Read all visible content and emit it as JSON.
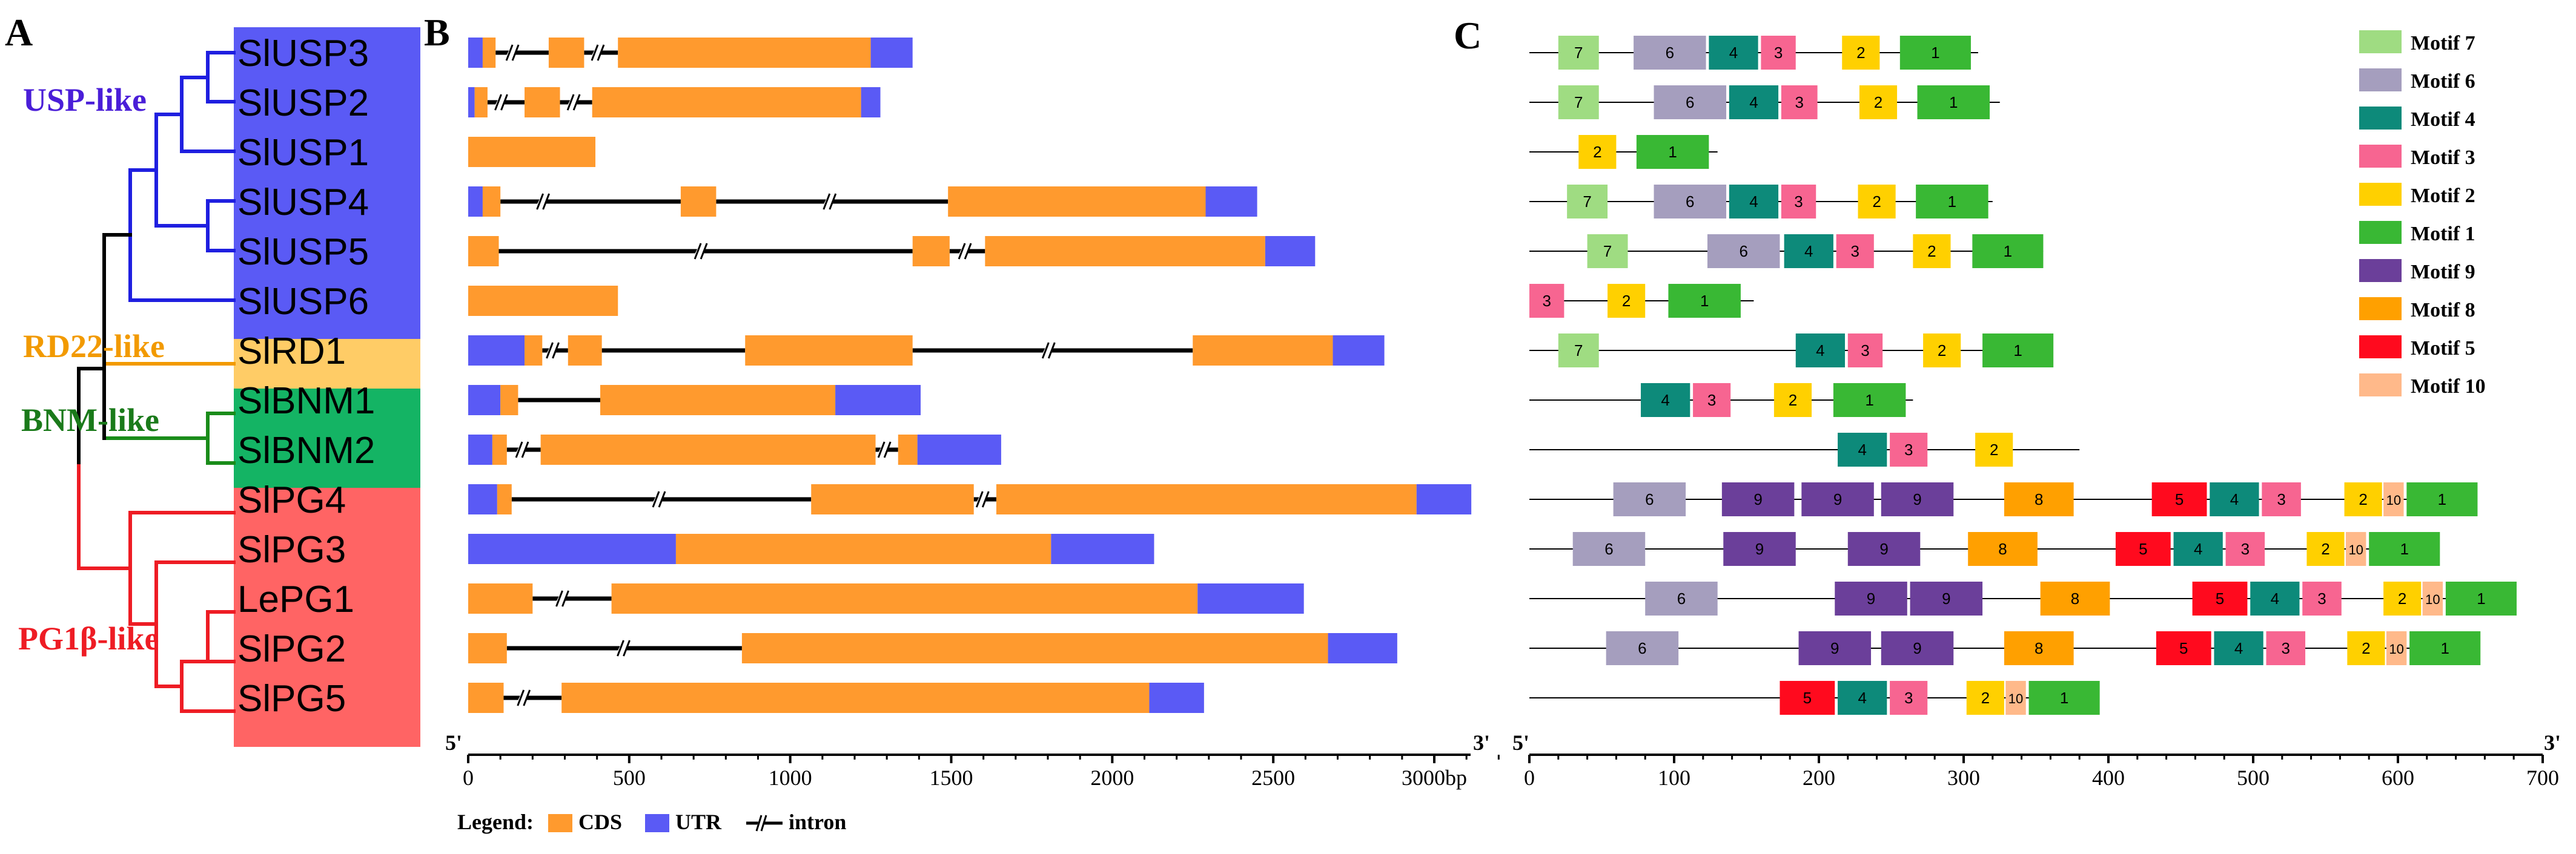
{
  "panels": {
    "a": "A",
    "b": "B",
    "c": "C"
  },
  "colors": {
    "usp": "#5a5af5",
    "rd22": "#ffcc66",
    "bnm": "#14b464",
    "pg": "#ff6464",
    "cds": "#ff9a2e",
    "utr": "#5a5af5",
    "clade_usp_text": "#4a1ed8",
    "clade_rd22_text": "#f29a00",
    "clade_bnm_text": "#1a7a1a",
    "clade_pg_text": "#ee1c24"
  },
  "clades": [
    {
      "id": "usp",
      "label": "USP-like"
    },
    {
      "id": "rd22",
      "label": "RD22-like"
    },
    {
      "id": "bnm",
      "label": "BNM-like"
    },
    {
      "id": "pg",
      "label": "PG1β-like"
    }
  ],
  "genes": [
    {
      "name": "SlUSP3",
      "clade": "usp",
      "length": 1380,
      "features": [
        {
          "t": "utr",
          "s": 0,
          "e": 45
        },
        {
          "t": "cds",
          "s": 45,
          "e": 85
        },
        {
          "t": "intron",
          "s": 85,
          "e": 250,
          "brk": 145
        },
        {
          "t": "cds",
          "s": 250,
          "e": 360
        },
        {
          "t": "intron",
          "s": 360,
          "e": 465,
          "brk": 410
        },
        {
          "t": "cds",
          "s": 465,
          "e": 1250
        },
        {
          "t": "utr",
          "s": 1250,
          "e": 1380
        }
      ]
    },
    {
      "name": "SlUSP2",
      "clade": "usp",
      "length": 1280,
      "features": [
        {
          "t": "utr",
          "s": 0,
          "e": 20
        },
        {
          "t": "cds",
          "s": 20,
          "e": 60
        },
        {
          "t": "intron",
          "s": 60,
          "e": 175,
          "brk": 110
        },
        {
          "t": "cds",
          "s": 175,
          "e": 285
        },
        {
          "t": "intron",
          "s": 285,
          "e": 385,
          "brk": 335
        },
        {
          "t": "cds",
          "s": 385,
          "e": 1220
        },
        {
          "t": "utr",
          "s": 1220,
          "e": 1280
        }
      ]
    },
    {
      "name": "SlUSP1",
      "clade": "usp",
      "length": 395,
      "features": [
        {
          "t": "cds",
          "s": 0,
          "e": 395
        }
      ]
    },
    {
      "name": "SlUSP4",
      "clade": "usp",
      "length": 2450,
      "features": [
        {
          "t": "utr",
          "s": 0,
          "e": 45
        },
        {
          "t": "cds",
          "s": 45,
          "e": 100
        },
        {
          "t": "intron",
          "s": 100,
          "e": 660,
          "brk": 240
        },
        {
          "t": "cds",
          "s": 660,
          "e": 770
        },
        {
          "t": "intron",
          "s": 770,
          "e": 1490,
          "brk": 1130
        },
        {
          "t": "cds",
          "s": 1490,
          "e": 2290
        },
        {
          "t": "utr",
          "s": 2290,
          "e": 2450
        }
      ]
    },
    {
      "name": "SlUSP5",
      "clade": "usp",
      "length": 2630,
      "features": [
        {
          "t": "cds",
          "s": 0,
          "e": 95
        },
        {
          "t": "intron",
          "s": 95,
          "e": 1380,
          "brk": 730
        },
        {
          "t": "cds",
          "s": 1380,
          "e": 1495
        },
        {
          "t": "intron",
          "s": 1495,
          "e": 1605,
          "brk": 1550
        },
        {
          "t": "cds",
          "s": 1605,
          "e": 2475
        },
        {
          "t": "utr",
          "s": 2475,
          "e": 2630
        }
      ]
    },
    {
      "name": "SlUSP6",
      "clade": "usp",
      "length": 465,
      "features": [
        {
          "t": "cds",
          "s": 0,
          "e": 465
        }
      ]
    },
    {
      "name": "SlRD1",
      "clade": "rd22",
      "length": 2845,
      "features": [
        {
          "t": "utr",
          "s": 0,
          "e": 175
        },
        {
          "t": "cds",
          "s": 175,
          "e": 230
        },
        {
          "t": "intron",
          "s": 230,
          "e": 310,
          "brk": 270
        },
        {
          "t": "cds",
          "s": 310,
          "e": 415
        },
        {
          "t": "intron",
          "s": 415,
          "e": 860
        },
        {
          "t": "cds",
          "s": 860,
          "e": 1380
        },
        {
          "t": "intron",
          "s": 1380,
          "e": 2250,
          "brk": 1810
        },
        {
          "t": "cds",
          "s": 2250,
          "e": 2685
        },
        {
          "t": "utr",
          "s": 2685,
          "e": 2845
        }
      ]
    },
    {
      "name": "SlBNM1",
      "clade": "bnm",
      "length": 1405,
      "features": [
        {
          "t": "utr",
          "s": 0,
          "e": 100
        },
        {
          "t": "cds",
          "s": 100,
          "e": 155
        },
        {
          "t": "intron",
          "s": 155,
          "e": 410
        },
        {
          "t": "cds",
          "s": 410,
          "e": 1140
        },
        {
          "t": "utr",
          "s": 1140,
          "e": 1405
        }
      ]
    },
    {
      "name": "SlBNM2",
      "clade": "bnm",
      "length": 1655,
      "features": [
        {
          "t": "utr",
          "s": 0,
          "e": 75
        },
        {
          "t": "cds",
          "s": 75,
          "e": 120
        },
        {
          "t": "intron",
          "s": 120,
          "e": 225,
          "brk": 175
        },
        {
          "t": "cds",
          "s": 225,
          "e": 1265
        },
        {
          "t": "intron",
          "s": 1265,
          "e": 1335,
          "brk": 1300
        },
        {
          "t": "cds",
          "s": 1335,
          "e": 1395
        },
        {
          "t": "utr",
          "s": 1395,
          "e": 1655
        }
      ]
    },
    {
      "name": "SlPG4",
      "clade": "pg",
      "length": 3115,
      "features": [
        {
          "t": "utr",
          "s": 0,
          "e": 90
        },
        {
          "t": "cds",
          "s": 90,
          "e": 135
        },
        {
          "t": "intron",
          "s": 135,
          "e": 1065,
          "brk": 600
        },
        {
          "t": "cds",
          "s": 1065,
          "e": 1570
        },
        {
          "t": "intron",
          "s": 1570,
          "e": 1640,
          "brk": 1605
        },
        {
          "t": "cds",
          "s": 1640,
          "e": 2945
        },
        {
          "t": "utr",
          "s": 2945,
          "e": 3115
        }
      ]
    },
    {
      "name": "SlPG3",
      "clade": "pg",
      "length": 2130,
      "features": [
        {
          "t": "utr",
          "s": 0,
          "e": 645
        },
        {
          "t": "cds",
          "s": 645,
          "e": 1810
        },
        {
          "t": "utr",
          "s": 1810,
          "e": 2130
        }
      ]
    },
    {
      "name": "LePG1",
      "clade": "pg",
      "length": 2595,
      "features": [
        {
          "t": "cds",
          "s": 0,
          "e": 200
        },
        {
          "t": "intron",
          "s": 200,
          "e": 445,
          "brk": 300
        },
        {
          "t": "cds",
          "s": 445,
          "e": 2265
        },
        {
          "t": "utr",
          "s": 2265,
          "e": 2595
        }
      ]
    },
    {
      "name": "SlPG2",
      "clade": "pg",
      "length": 2885,
      "features": [
        {
          "t": "cds",
          "s": 0,
          "e": 120
        },
        {
          "t": "intron",
          "s": 120,
          "e": 850,
          "brk": 490
        },
        {
          "t": "cds",
          "s": 850,
          "e": 2670
        },
        {
          "t": "utr",
          "s": 2670,
          "e": 2885
        }
      ]
    },
    {
      "name": "SlPG5",
      "clade": "pg",
      "length": 2285,
      "features": [
        {
          "t": "cds",
          "s": 0,
          "e": 110
        },
        {
          "t": "intron",
          "s": 110,
          "e": 290,
          "brk": 180
        },
        {
          "t": "cds",
          "s": 290,
          "e": 2115
        },
        {
          "t": "utr",
          "s": 2115,
          "e": 2285
        }
      ]
    }
  ],
  "gene_axis": {
    "start_label": "5'",
    "end_label": "3'",
    "unit": "bp",
    "max": 3000,
    "ticks": [
      0,
      500,
      1000,
      1500,
      2000,
      2500,
      3000
    ]
  },
  "legend_b": {
    "title": "Legend:",
    "cds": "CDS",
    "utr": "UTR",
    "intron": "intron"
  },
  "motif_legend": [
    {
      "id": 7,
      "label": "Motif 7",
      "color": "#9fdc82"
    },
    {
      "id": 6,
      "label": "Motif 6",
      "color": "#a59ebe"
    },
    {
      "id": 4,
      "label": "Motif 4",
      "color": "#0d8a7a"
    },
    {
      "id": 3,
      "label": "Motif 3",
      "color": "#f76591"
    },
    {
      "id": 2,
      "label": "Motif 2",
      "color": "#ffd000"
    },
    {
      "id": 1,
      "label": "Motif 1",
      "color": "#39b834"
    },
    {
      "id": 9,
      "label": "Motif 9",
      "color": "#6b3f9a"
    },
    {
      "id": 8,
      "label": "Motif 8",
      "color": "#ffa000"
    },
    {
      "id": 5,
      "label": "Motif 5",
      "color": "#ff0a1e"
    },
    {
      "id": 10,
      "label": "Motif 10",
      "color": "#ffb98a"
    }
  ],
  "motif_rows": [
    {
      "length": 310,
      "motifs": [
        {
          "m": 7,
          "s": 20,
          "e": 48
        },
        {
          "m": 6,
          "s": 72,
          "e": 122
        },
        {
          "m": 4,
          "s": 124,
          "e": 158
        },
        {
          "m": 3,
          "s": 160,
          "e": 184
        },
        {
          "m": 2,
          "s": 216,
          "e": 242
        },
        {
          "m": 1,
          "s": 256,
          "e": 305
        }
      ]
    },
    {
      "length": 325,
      "motifs": [
        {
          "m": 7,
          "s": 20,
          "e": 48
        },
        {
          "m": 6,
          "s": 86,
          "e": 136
        },
        {
          "m": 4,
          "s": 138,
          "e": 172
        },
        {
          "m": 3,
          "s": 174,
          "e": 199
        },
        {
          "m": 2,
          "s": 228,
          "e": 254
        },
        {
          "m": 1,
          "s": 268,
          "e": 318
        }
      ]
    },
    {
      "length": 130,
      "motifs": [
        {
          "m": 2,
          "s": 34,
          "e": 60
        },
        {
          "m": 1,
          "s": 74,
          "e": 124
        }
      ]
    },
    {
      "length": 320,
      "motifs": [
        {
          "m": 7,
          "s": 26,
          "e": 54
        },
        {
          "m": 6,
          "s": 86,
          "e": 136
        },
        {
          "m": 4,
          "s": 138,
          "e": 172
        },
        {
          "m": 3,
          "s": 174,
          "e": 198
        },
        {
          "m": 2,
          "s": 227,
          "e": 253
        },
        {
          "m": 1,
          "s": 267,
          "e": 317
        }
      ]
    },
    {
      "length": 355,
      "motifs": [
        {
          "m": 7,
          "s": 40,
          "e": 68
        },
        {
          "m": 6,
          "s": 123,
          "e": 173
        },
        {
          "m": 4,
          "s": 176,
          "e": 210
        },
        {
          "m": 3,
          "s": 212,
          "e": 238
        },
        {
          "m": 2,
          "s": 265,
          "e": 291
        },
        {
          "m": 1,
          "s": 306,
          "e": 355
        }
      ]
    },
    {
      "length": 155,
      "motifs": [
        {
          "m": 3,
          "s": 0,
          "e": 24
        },
        {
          "m": 2,
          "s": 54,
          "e": 80
        },
        {
          "m": 1,
          "s": 96,
          "e": 146
        }
      ]
    },
    {
      "length": 360,
      "motifs": [
        {
          "m": 7,
          "s": 20,
          "e": 48
        },
        {
          "m": 4,
          "s": 184,
          "e": 218
        },
        {
          "m": 3,
          "s": 220,
          "e": 244
        },
        {
          "m": 2,
          "s": 272,
          "e": 298
        },
        {
          "m": 1,
          "s": 313,
          "e": 362
        }
      ]
    },
    {
      "length": 265,
      "motifs": [
        {
          "m": 4,
          "s": 77,
          "e": 111
        },
        {
          "m": 3,
          "s": 113,
          "e": 139
        },
        {
          "m": 2,
          "s": 169,
          "e": 195
        },
        {
          "m": 1,
          "s": 210,
          "e": 260
        }
      ]
    },
    {
      "length": 380,
      "motifs": [
        {
          "m": 4,
          "s": 213,
          "e": 247
        },
        {
          "m": 3,
          "s": 249,
          "e": 275
        },
        {
          "m": 2,
          "s": 308,
          "e": 334
        }
      ]
    },
    {
      "length": 645,
      "motifs": [
        {
          "m": 6,
          "s": 58,
          "e": 108
        },
        {
          "m": 9,
          "s": 133,
          "e": 183
        },
        {
          "m": 9,
          "s": 188,
          "e": 238
        },
        {
          "m": 9,
          "s": 243,
          "e": 293
        },
        {
          "m": 8,
          "s": 328,
          "e": 376
        },
        {
          "m": 5,
          "s": 430,
          "e": 468
        },
        {
          "m": 4,
          "s": 470,
          "e": 504
        },
        {
          "m": 3,
          "s": 506,
          "e": 533
        },
        {
          "m": 2,
          "s": 563,
          "e": 589
        },
        {
          "m": 10,
          "s": 590,
          "e": 604
        },
        {
          "m": 1,
          "s": 606,
          "e": 655
        }
      ]
    },
    {
      "length": 620,
      "motifs": [
        {
          "m": 6,
          "s": 30,
          "e": 80
        },
        {
          "m": 9,
          "s": 134,
          "e": 184
        },
        {
          "m": 9,
          "s": 220,
          "e": 270
        },
        {
          "m": 8,
          "s": 303,
          "e": 351
        },
        {
          "m": 5,
          "s": 405,
          "e": 443
        },
        {
          "m": 4,
          "s": 445,
          "e": 479
        },
        {
          "m": 3,
          "s": 481,
          "e": 508
        },
        {
          "m": 2,
          "s": 537,
          "e": 563
        },
        {
          "m": 10,
          "s": 564,
          "e": 578
        },
        {
          "m": 1,
          "s": 580,
          "e": 629
        }
      ]
    },
    {
      "length": 675,
      "motifs": [
        {
          "m": 6,
          "s": 80,
          "e": 130
        },
        {
          "m": 9,
          "s": 211,
          "e": 261
        },
        {
          "m": 9,
          "s": 263,
          "e": 313
        },
        {
          "m": 8,
          "s": 353,
          "e": 401
        },
        {
          "m": 5,
          "s": 458,
          "e": 496
        },
        {
          "m": 4,
          "s": 498,
          "e": 532
        },
        {
          "m": 3,
          "s": 534,
          "e": 561
        },
        {
          "m": 2,
          "s": 590,
          "e": 616
        },
        {
          "m": 10,
          "s": 617,
          "e": 631
        },
        {
          "m": 1,
          "s": 633,
          "e": 682
        }
      ]
    },
    {
      "length": 645,
      "motifs": [
        {
          "m": 6,
          "s": 53,
          "e": 103
        },
        {
          "m": 9,
          "s": 186,
          "e": 236
        },
        {
          "m": 9,
          "s": 243,
          "e": 293
        },
        {
          "m": 8,
          "s": 328,
          "e": 376
        },
        {
          "m": 5,
          "s": 433,
          "e": 471
        },
        {
          "m": 4,
          "s": 473,
          "e": 507
        },
        {
          "m": 3,
          "s": 509,
          "e": 536
        },
        {
          "m": 2,
          "s": 565,
          "e": 591
        },
        {
          "m": 10,
          "s": 592,
          "e": 606
        },
        {
          "m": 1,
          "s": 608,
          "e": 657
        }
      ]
    },
    {
      "length": 390,
      "motifs": [
        {
          "m": 5,
          "s": 173,
          "e": 211
        },
        {
          "m": 4,
          "s": 213,
          "e": 247
        },
        {
          "m": 3,
          "s": 249,
          "e": 275
        },
        {
          "m": 2,
          "s": 302,
          "e": 328
        },
        {
          "m": 10,
          "s": 329,
          "e": 343
        },
        {
          "m": 1,
          "s": 345,
          "e": 394
        }
      ]
    }
  ],
  "motif_axis": {
    "start_label": "5'",
    "end_label": "3'",
    "max": 700,
    "ticks": [
      0,
      100,
      200,
      300,
      400,
      500,
      600,
      700
    ]
  }
}
